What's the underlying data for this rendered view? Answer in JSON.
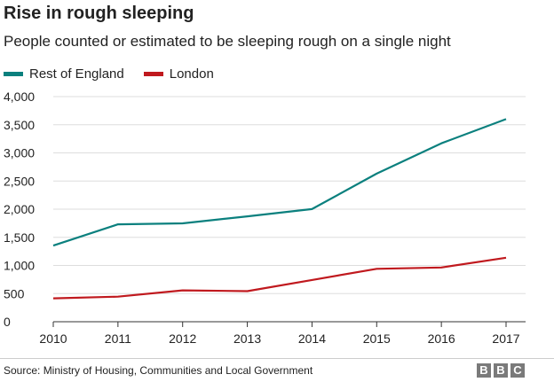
{
  "chart_data": {
    "type": "line",
    "title": "Rise in rough sleeping",
    "subtitle": "People counted or estimated to be sleeping rough on a single night",
    "x": [
      "2010",
      "2011",
      "2012",
      "2013",
      "2014",
      "2015",
      "2016",
      "2017"
    ],
    "series": [
      {
        "name": "Rest of England",
        "color": "#0b807e",
        "values": [
          1352,
          1730,
          1748,
          1872,
          2001,
          2631,
          3170,
          3600
        ]
      },
      {
        "name": "London",
        "color": "#c0191e",
        "values": [
          415,
          446,
          557,
          543,
          742,
          940,
          964,
          1137
        ]
      }
    ],
    "yticks": [
      "0",
      "500",
      "1,000",
      "1,500",
      "2,000",
      "2,500",
      "3,000",
      "3,500",
      "4,000"
    ],
    "ylim": [
      0,
      4000
    ],
    "grid": true,
    "legend_position": "top-left"
  },
  "footer": {
    "source": "Source: Ministry of Housing, Communities and Local Government",
    "logo_letters": [
      "B",
      "B",
      "C"
    ]
  }
}
